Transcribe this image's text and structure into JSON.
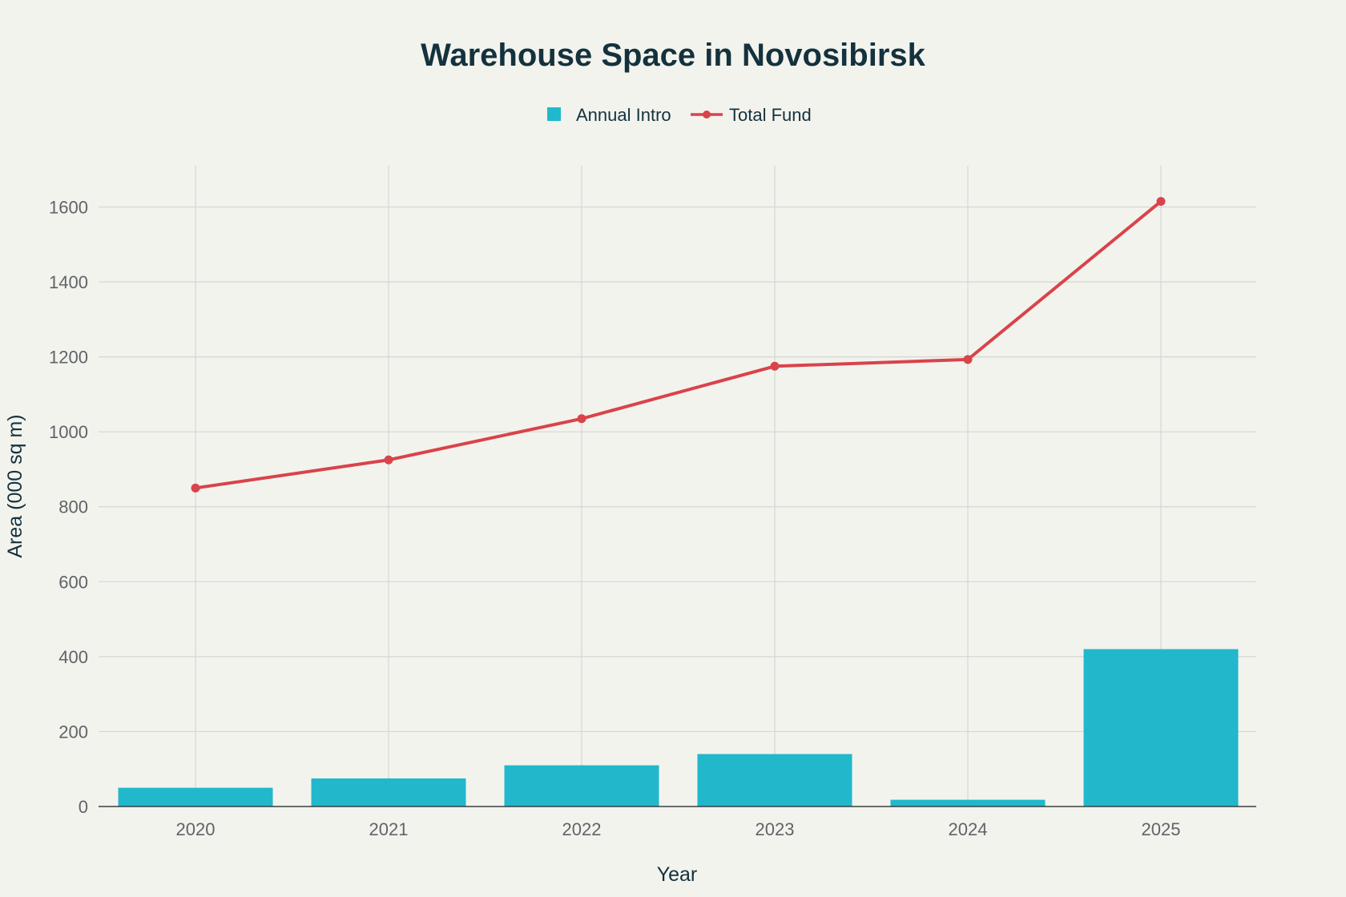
{
  "chart_data": {
    "type": "bar+line",
    "title": "Warehouse Space in Novosibirsk",
    "xlabel": "Year",
    "ylabel": "Area (000 sq m)",
    "categories": [
      "2020",
      "2021",
      "2022",
      "2023",
      "2024",
      "2025"
    ],
    "ylim": [
      0,
      1710
    ],
    "yticks": [
      0,
      200,
      400,
      600,
      800,
      1000,
      1200,
      1400,
      1600
    ],
    "grid": true,
    "legend_position": "top-center",
    "series": [
      {
        "name": "Annual Intro",
        "type": "bar",
        "color": "#21b8cc",
        "values": [
          50,
          75,
          110,
          140,
          18,
          420
        ]
      },
      {
        "name": "Total Fund",
        "type": "line",
        "color": "#d9434a",
        "values": [
          850,
          925,
          1035,
          1175,
          1193,
          1615
        ]
      }
    ]
  }
}
